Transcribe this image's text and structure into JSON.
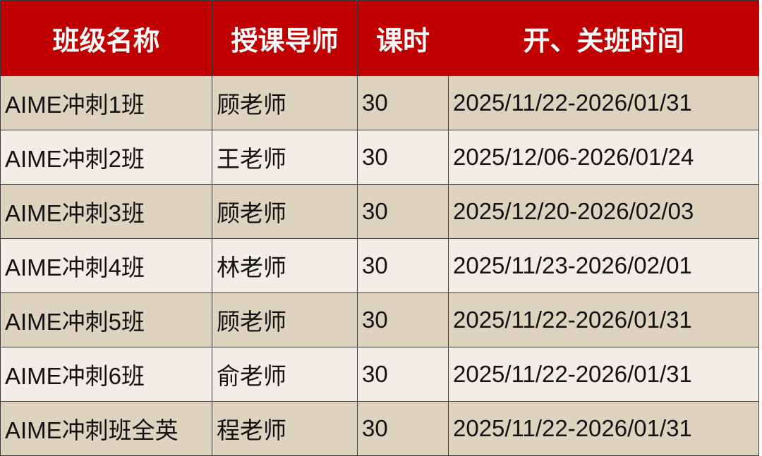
{
  "table": {
    "header": [
      "班级名称",
      "授课导师",
      "课时",
      "开、关班时间"
    ],
    "rows": [
      [
        "AIME冲刺1班",
        "顾老师",
        30,
        "2025/11/22-2026/01/31"
      ],
      [
        "AIME冲刺2班",
        "王老师",
        30,
        "2025/12/06-2026/01/24"
      ],
      [
        "AIME冲刺3班",
        "顾老师",
        30,
        "2025/12/20-2026/02/03"
      ],
      [
        "AIME冲刺4班",
        "林老师",
        30,
        "2025/11/23-2026/02/01"
      ],
      [
        "AIME冲刺5班",
        "顾老师",
        30,
        "2025/11/22-2026/01/31"
      ],
      [
        "AIME冲刺6班",
        "俞老师",
        30,
        "2025/11/22-2026/01/31"
      ],
      [
        "AIME冲刺班全英",
        "程老师",
        30,
        "2025/11/22-2026/01/31"
      ]
    ]
  }
}
